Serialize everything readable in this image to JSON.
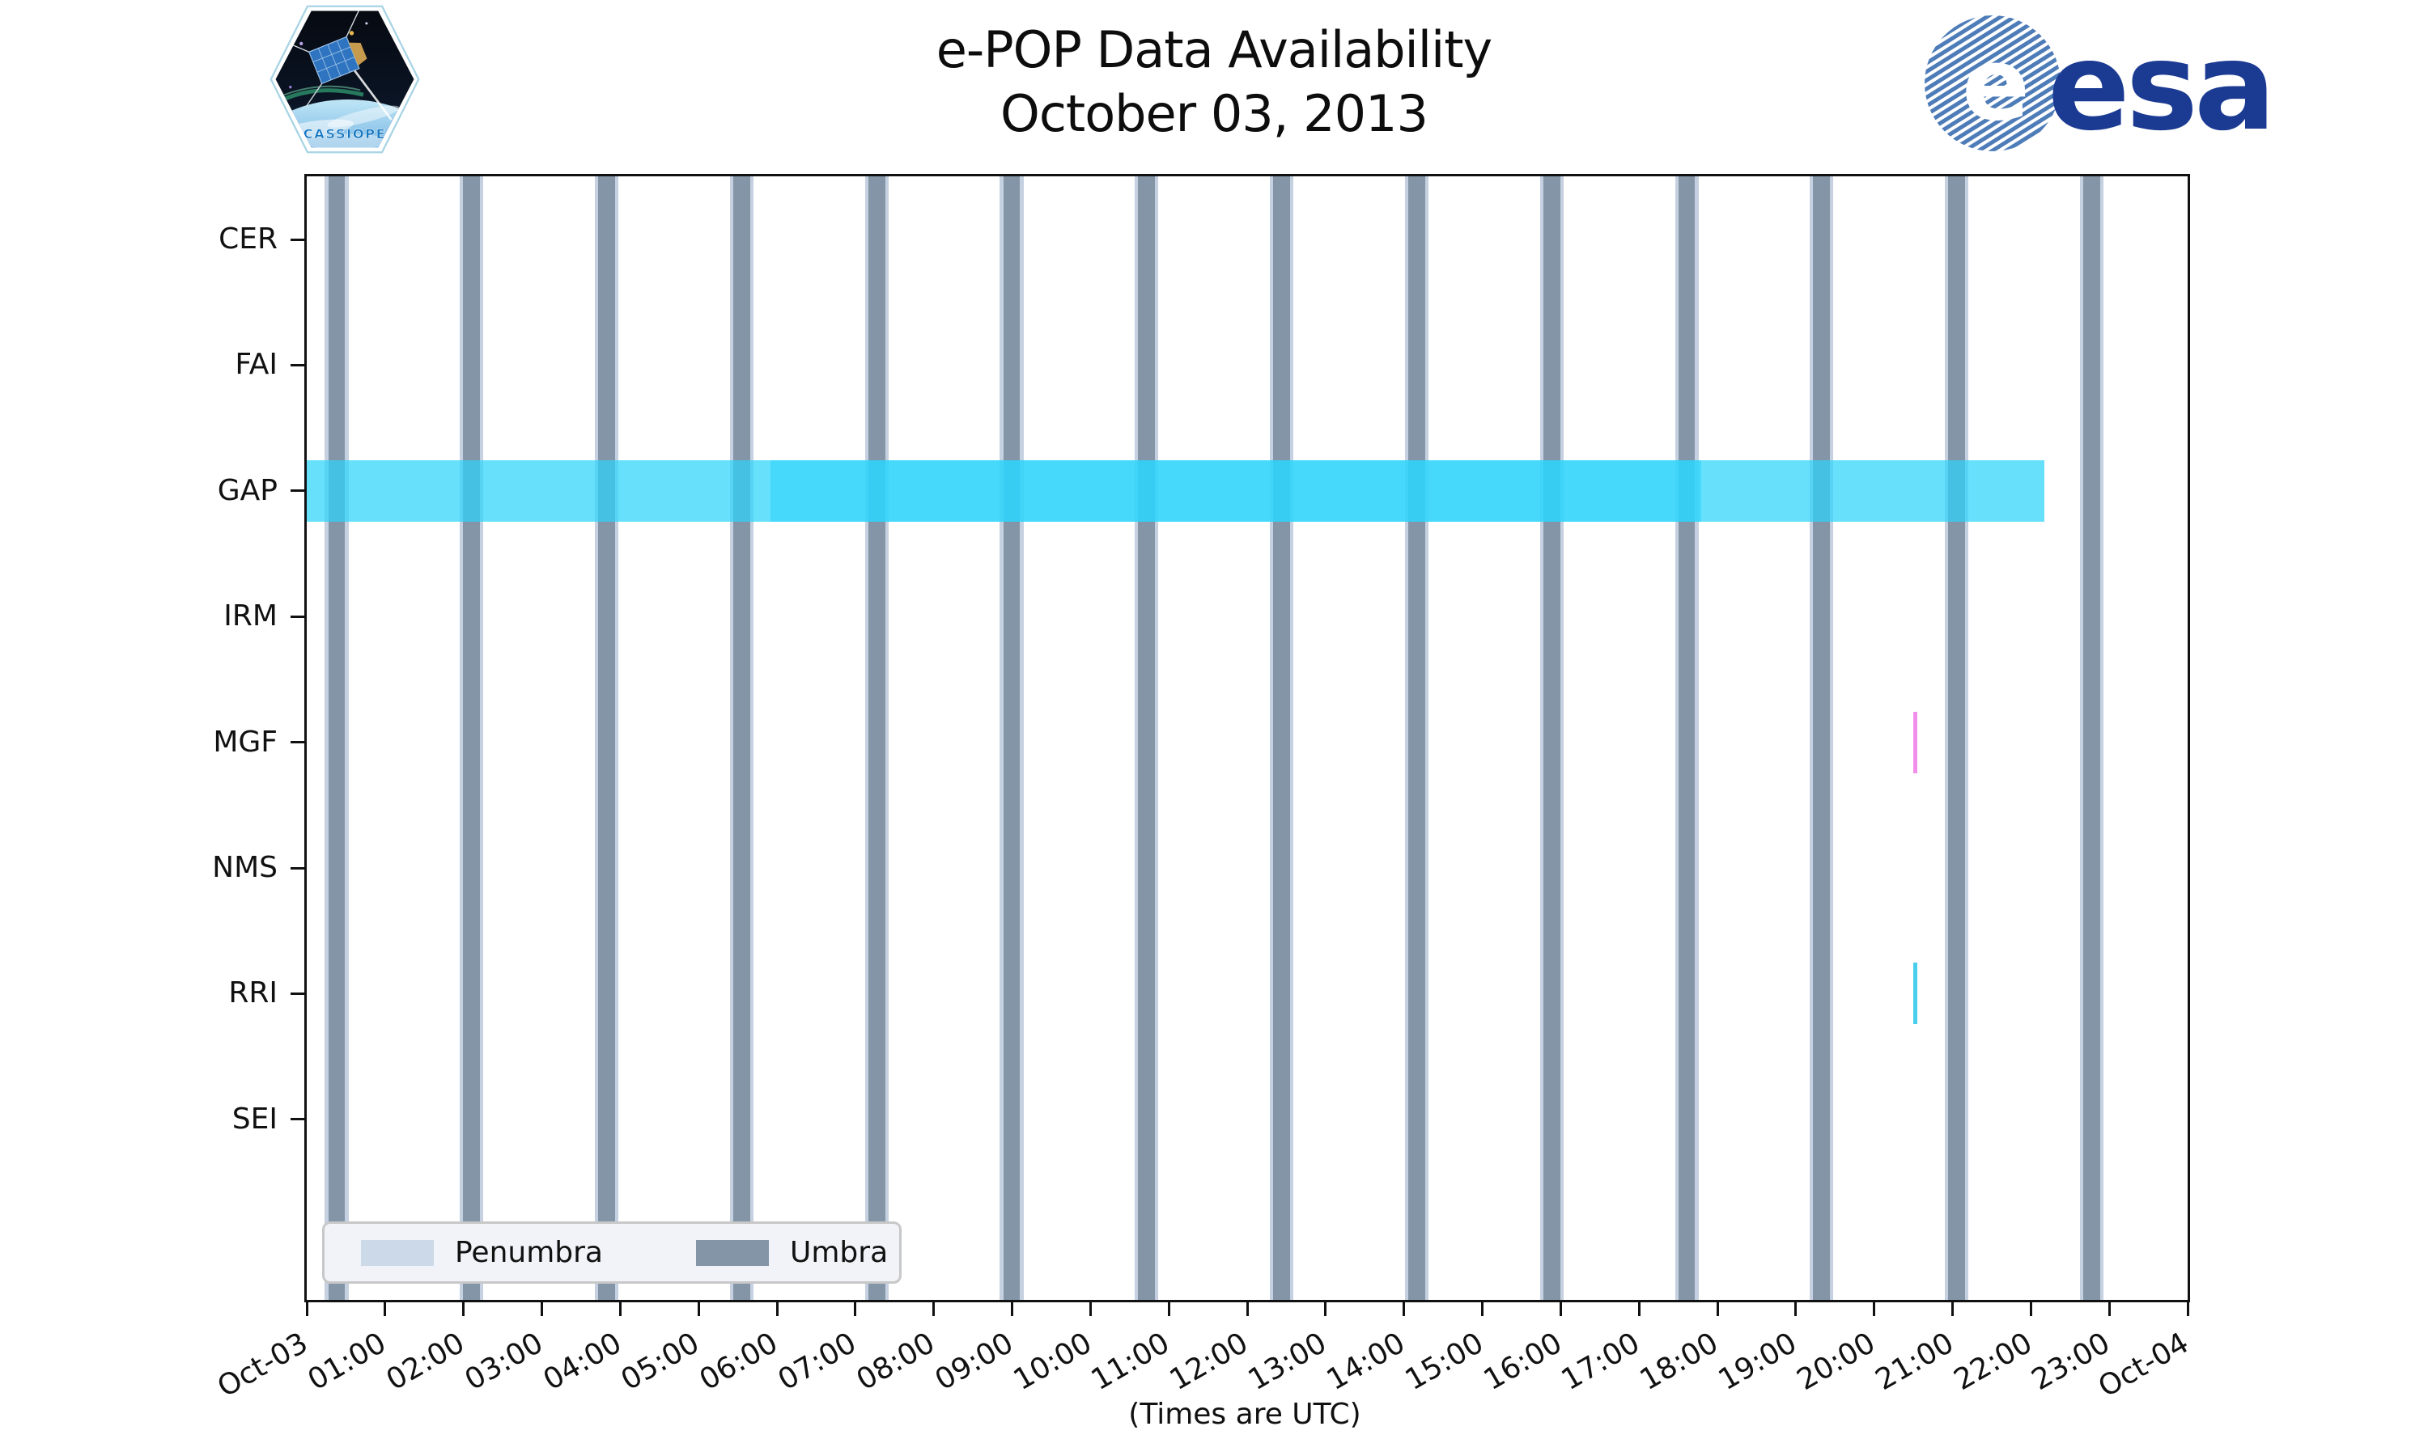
{
  "header": {
    "title_lines": [
      "e-POP Data Availability",
      "October 03, 2013"
    ]
  },
  "logos": {
    "cassiope_text": "CASSIOPE",
    "esa_text": "esa"
  },
  "chart_data": {
    "type": "timeline",
    "title": "e-POP Data Availability",
    "subtitle": "October 03, 2013",
    "xlabel": "(Times are UTC)",
    "x_range_hours": [
      0,
      24
    ],
    "x_tick_labels": [
      "Oct-03",
      "01:00",
      "02:00",
      "03:00",
      "04:00",
      "05:00",
      "06:00",
      "07:00",
      "08:00",
      "09:00",
      "10:00",
      "11:00",
      "12:00",
      "13:00",
      "14:00",
      "15:00",
      "16:00",
      "17:00",
      "18:00",
      "19:00",
      "20:00",
      "21:00",
      "22:00",
      "23:00",
      "Oct-04"
    ],
    "instruments": [
      "CER",
      "FAI",
      "GAP",
      "IRM",
      "MGF",
      "NMS",
      "RRI",
      "SEI"
    ],
    "availability": [
      {
        "instrument": "GAP",
        "color": "#2cd4fa",
        "segments": [
          {
            "start_h": 0.0,
            "end_h": 5.92,
            "density": "light",
            "start": "00:00",
            "end": "05:55"
          },
          {
            "start_h": 5.92,
            "end_h": 17.79,
            "density": "dense",
            "start": "05:55",
            "end": "17:47"
          },
          {
            "start_h": 17.79,
            "end_h": 22.17,
            "density": "light",
            "start": "17:47",
            "end": "22:10"
          }
        ]
      },
      {
        "instrument": "MGF",
        "color": "#ef7fe7",
        "segments": [
          {
            "start_h": 20.5,
            "end_h": 20.55,
            "density": "dense",
            "start": "20:30",
            "end": "20:33"
          }
        ]
      },
      {
        "instrument": "RRI",
        "color": "#30c7e8",
        "segments": [
          {
            "start_h": 20.5,
            "end_h": 20.55,
            "density": "dense",
            "start": "20:30",
            "end": "20:33"
          }
        ]
      }
    ],
    "eclipse_bands": {
      "first_center_h": 0.382,
      "period_h": 1.7226,
      "count": 14,
      "umbra_halfwidth_h": 0.108,
      "penumbra_halfwidth_h": 0.15
    },
    "legend": [
      {
        "label": "Penumbra",
        "color": "#ccd9e8"
      },
      {
        "label": "Umbra",
        "color": "#8495a8"
      }
    ],
    "layout": {
      "grid": false,
      "legend_position": "lower left",
      "bar_fraction_of_row": 0.49
    }
  },
  "colors": {
    "umbra": "#8495a8",
    "penumbra": "#c5d1e0",
    "gap_bar": "#2cd4fa",
    "mgf_mark": "#ef7fe7",
    "rri_mark": "#30c7e8",
    "esa_blue": "#1b3a92",
    "esa_stripe_blue": "#4d7cb8",
    "cassiope_blue": "#1778c2",
    "axis": "#111111"
  }
}
